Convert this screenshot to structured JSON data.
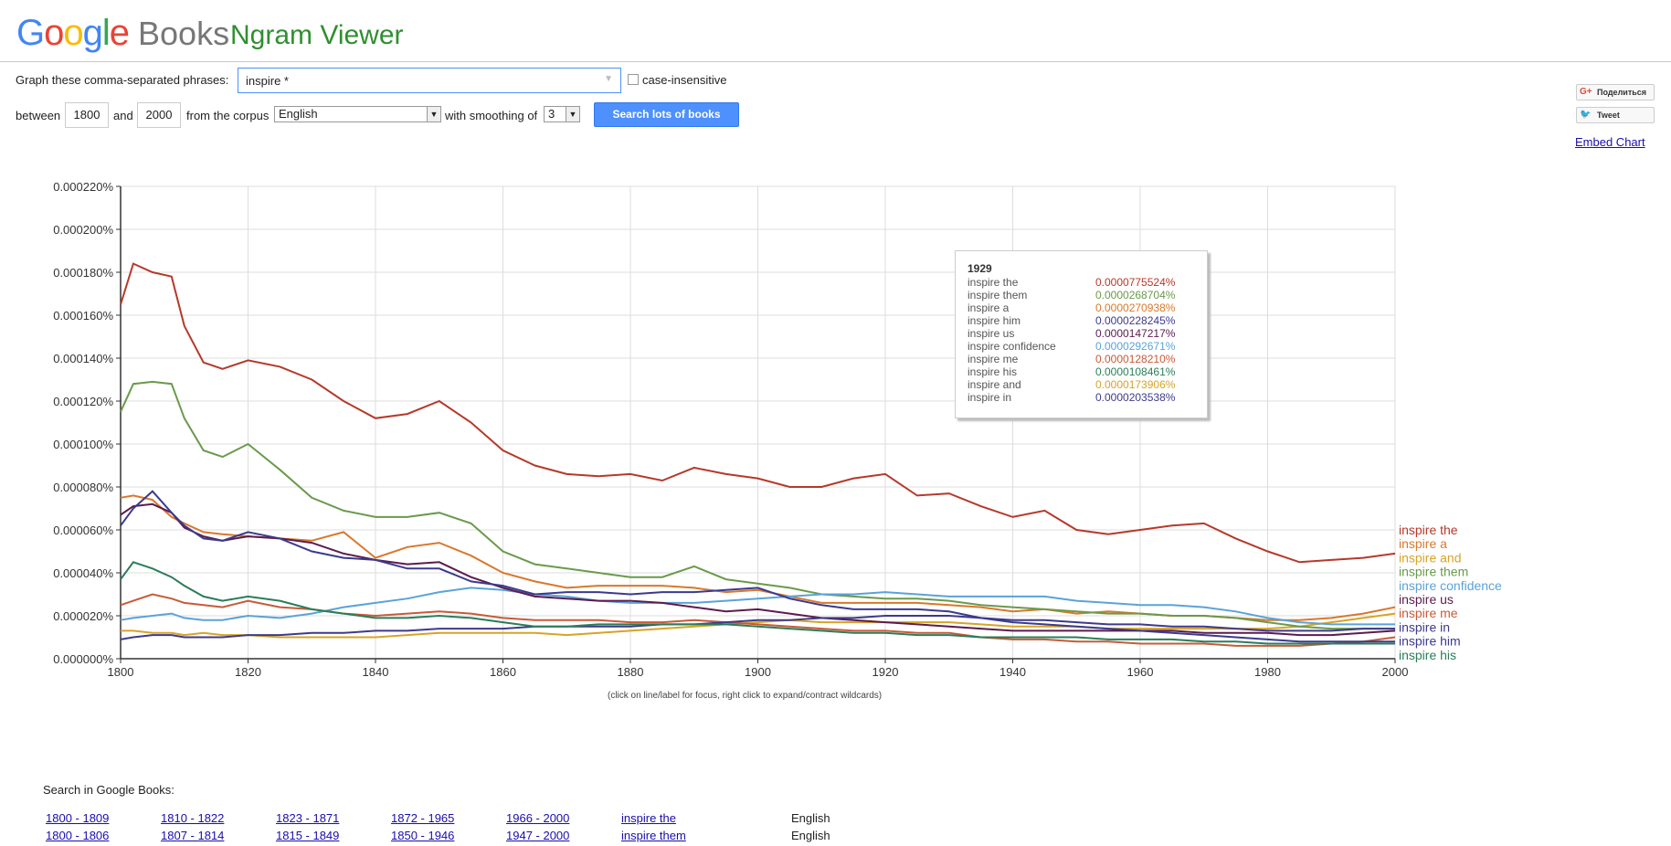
{
  "header": {
    "logo_parts": [
      "G",
      "o",
      "o",
      "g",
      "l",
      "e"
    ],
    "logo_books": "Books",
    "app_name": "Ngram Viewer"
  },
  "form": {
    "phrases_label": "Graph these comma-separated phrases:",
    "phrases_value": "inspire *",
    "case_label": "case-insensitive",
    "between_label": "between",
    "start_year": "1800",
    "and_label": "and",
    "end_year": "2000",
    "corpus_label": "from the corpus",
    "corpus_value": "English",
    "smoothing_label": "with smoothing of",
    "smoothing_value": "3",
    "search_button": "Search lots of books"
  },
  "share": {
    "gplus_label": "Поделиться",
    "tweet_label": "Tweet",
    "embed_label": "Embed Chart"
  },
  "hint": "(click on line/label for focus, right click to expand/contract wildcards)",
  "tooltip": {
    "year": "1929",
    "rows": [
      {
        "name": "inspire the",
        "value": "0.0000775524%",
        "color": "#b5392a"
      },
      {
        "name": "inspire them",
        "value": "0.0000268704%",
        "color": "#6a9a4b"
      },
      {
        "name": "inspire a",
        "value": "0.0000270938%",
        "color": "#d9782b"
      },
      {
        "name": "inspire him",
        "value": "0.0000228245%",
        "color": "#3b3a8e"
      },
      {
        "name": "inspire us",
        "value": "0.0000147217%",
        "color": "#5c1c4d"
      },
      {
        "name": "inspire confidence",
        "value": "0.0000292671%",
        "color": "#5aa3d9"
      },
      {
        "name": "inspire me",
        "value": "0.0000128210%",
        "color": "#c85a38"
      },
      {
        "name": "inspire his",
        "value": "0.0000108461%",
        "color": "#2a7d5a"
      },
      {
        "name": "inspire and",
        "value": "0.0000173906%",
        "color": "#d6a428"
      },
      {
        "name": "inspire in",
        "value": "0.0000203538%",
        "color": "#3e3a8a"
      }
    ]
  },
  "search_in": {
    "label": "Search in Google Books:",
    "rows": [
      {
        "ranges": [
          "1800 - 1809",
          "1810 - 1822",
          "1823 - 1871",
          "1872 - 1965",
          "1966 - 2000"
        ],
        "phrase": "inspire the",
        "corpus": "English"
      },
      {
        "ranges": [
          "1800 - 1806",
          "1807 - 1814",
          "1815 - 1849",
          "1850 - 1946",
          "1947 - 2000"
        ],
        "phrase": "inspire them",
        "corpus": "English"
      }
    ]
  },
  "chart_data": {
    "type": "line",
    "xlim": [
      1800,
      2000
    ],
    "ylim": [
      0,
      0.00022
    ],
    "x_ticks": [
      "1800",
      "1820",
      "1840",
      "1860",
      "1880",
      "1900",
      "1920",
      "1940",
      "1960",
      "1980",
      "2000"
    ],
    "y_ticks": [
      "0.000000%",
      "0.000020%",
      "0.000040%",
      "0.000060%",
      "0.000080%",
      "0.000100%",
      "0.000120%",
      "0.000140%",
      "0.000160%",
      "0.000180%",
      "0.000200%",
      "0.000220%"
    ],
    "grid": true,
    "x": [
      1800,
      1802,
      1805,
      1808,
      1810,
      1813,
      1816,
      1820,
      1825,
      1830,
      1835,
      1840,
      1845,
      1850,
      1855,
      1860,
      1865,
      1870,
      1875,
      1880,
      1885,
      1890,
      1895,
      1900,
      1905,
      1910,
      1915,
      1920,
      1925,
      1930,
      1935,
      1940,
      1945,
      1950,
      1955,
      1960,
      1965,
      1970,
      1975,
      1980,
      1985,
      1990,
      1995,
      2000
    ],
    "series": [
      {
        "name": "inspire the",
        "color": "#b5392a",
        "values": [
          0.000165,
          0.000184,
          0.00018,
          0.000178,
          0.000155,
          0.000138,
          0.000135,
          0.000139,
          0.000136,
          0.00013,
          0.00012,
          0.000112,
          0.000114,
          0.00012,
          0.00011,
          9.7e-05,
          9e-05,
          8.6e-05,
          8.5e-05,
          8.6e-05,
          8.3e-05,
          8.9e-05,
          8.6e-05,
          8.4e-05,
          8e-05,
          8e-05,
          8.4e-05,
          8.6e-05,
          7.6e-05,
          7.7e-05,
          7.1e-05,
          6.6e-05,
          6.9e-05,
          6e-05,
          5.8e-05,
          6e-05,
          6.2e-05,
          6.3e-05,
          5.6e-05,
          5e-05,
          4.5e-05,
          4.6e-05,
          4.7e-05,
          4.9e-05
        ]
      },
      {
        "name": "inspire a",
        "color": "#d9782b",
        "values": [
          7.5e-05,
          7.6e-05,
          7.4e-05,
          6.6e-05,
          6.3e-05,
          5.9e-05,
          5.8e-05,
          5.7e-05,
          5.6e-05,
          5.5e-05,
          5.9e-05,
          4.7e-05,
          5.2e-05,
          5.4e-05,
          4.8e-05,
          4e-05,
          3.6e-05,
          3.3e-05,
          3.4e-05,
          3.4e-05,
          3.4e-05,
          3.3e-05,
          3.1e-05,
          3.2e-05,
          2.9e-05,
          2.6e-05,
          2.6e-05,
          2.6e-05,
          2.6e-05,
          2.5e-05,
          2.4e-05,
          2.2e-05,
          2.3e-05,
          2.1e-05,
          2.2e-05,
          2.1e-05,
          2e-05,
          2e-05,
          1.9e-05,
          1.8e-05,
          1.8e-05,
          1.9e-05,
          2.1e-05,
          2.4e-05
        ]
      },
      {
        "name": "inspire and",
        "color": "#d6a428",
        "values": [
          1.3e-05,
          1.3e-05,
          1.2e-05,
          1.2e-05,
          1.1e-05,
          1.2e-05,
          1.1e-05,
          1.1e-05,
          1e-05,
          1e-05,
          1e-05,
          1e-05,
          1.1e-05,
          1.2e-05,
          1.2e-05,
          1.2e-05,
          1.2e-05,
          1.1e-05,
          1.2e-05,
          1.3e-05,
          1.4e-05,
          1.5e-05,
          1.6e-05,
          1.7e-05,
          1.8e-05,
          1.7e-05,
          1.7e-05,
          1.7e-05,
          1.7e-05,
          1.7e-05,
          1.6e-05,
          1.5e-05,
          1.5e-05,
          1.5e-05,
          1.4e-05,
          1.4e-05,
          1.4e-05,
          1.4e-05,
          1.4e-05,
          1.4e-05,
          1.5e-05,
          1.7e-05,
          1.9e-05,
          2.1e-05
        ]
      },
      {
        "name": "inspire them",
        "color": "#6a9a4b",
        "values": [
          0.000115,
          0.000128,
          0.000129,
          0.000128,
          0.000112,
          9.7e-05,
          9.4e-05,
          0.0001,
          8.8e-05,
          7.5e-05,
          6.9e-05,
          6.6e-05,
          6.6e-05,
          6.8e-05,
          6.3e-05,
          5e-05,
          4.4e-05,
          4.2e-05,
          4e-05,
          3.8e-05,
          3.8e-05,
          4.3e-05,
          3.7e-05,
          3.5e-05,
          3.3e-05,
          3e-05,
          2.9e-05,
          2.8e-05,
          2.8e-05,
          2.7e-05,
          2.5e-05,
          2.4e-05,
          2.3e-05,
          2.2e-05,
          2.1e-05,
          2.1e-05,
          2e-05,
          2e-05,
          1.9e-05,
          1.7e-05,
          1.5e-05,
          1.4e-05,
          1.4e-05,
          1.4e-05
        ]
      },
      {
        "name": "inspire confidence",
        "color": "#5aa3d9",
        "values": [
          1.8e-05,
          1.9e-05,
          2e-05,
          2.1e-05,
          1.9e-05,
          1.8e-05,
          1.8e-05,
          2e-05,
          1.9e-05,
          2.1e-05,
          2.4e-05,
          2.6e-05,
          2.8e-05,
          3.1e-05,
          3.3e-05,
          3.2e-05,
          3e-05,
          2.9e-05,
          2.7e-05,
          2.6e-05,
          2.6e-05,
          2.6e-05,
          2.7e-05,
          2.8e-05,
          2.9e-05,
          3e-05,
          3e-05,
          3.1e-05,
          3e-05,
          2.9e-05,
          2.9e-05,
          2.9e-05,
          2.9e-05,
          2.7e-05,
          2.6e-05,
          2.5e-05,
          2.5e-05,
          2.4e-05,
          2.2e-05,
          1.9e-05,
          1.7e-05,
          1.6e-05,
          1.6e-05,
          1.6e-05
        ]
      },
      {
        "name": "inspire us",
        "color": "#5c1c4d",
        "values": [
          6.7e-05,
          7.1e-05,
          7.2e-05,
          6.8e-05,
          6.1e-05,
          5.7e-05,
          5.5e-05,
          5.7e-05,
          5.6e-05,
          5.4e-05,
          4.9e-05,
          4.6e-05,
          4.4e-05,
          4.5e-05,
          3.8e-05,
          3.3e-05,
          2.9e-05,
          2.8e-05,
          2.7e-05,
          2.7e-05,
          2.6e-05,
          2.4e-05,
          2.2e-05,
          2.3e-05,
          2.1e-05,
          1.9e-05,
          1.8e-05,
          1.7e-05,
          1.6e-05,
          1.5e-05,
          1.4e-05,
          1.3e-05,
          1.3e-05,
          1.3e-05,
          1.3e-05,
          1.3e-05,
          1.3e-05,
          1.2e-05,
          1.2e-05,
          1.2e-05,
          1.1e-05,
          1.1e-05,
          1.2e-05,
          1.3e-05
        ]
      },
      {
        "name": "inspire me",
        "color": "#c85a38",
        "values": [
          2.5e-05,
          2.7e-05,
          3e-05,
          2.8e-05,
          2.6e-05,
          2.5e-05,
          2.4e-05,
          2.7e-05,
          2.4e-05,
          2.3e-05,
          2.1e-05,
          2e-05,
          2.1e-05,
          2.2e-05,
          2.1e-05,
          1.9e-05,
          1.8e-05,
          1.8e-05,
          1.8e-05,
          1.7e-05,
          1.7e-05,
          1.8e-05,
          1.7e-05,
          1.6e-05,
          1.5e-05,
          1.4e-05,
          1.3e-05,
          1.3e-05,
          1.2e-05,
          1.2e-05,
          1e-05,
          9e-06,
          9e-06,
          8e-06,
          8e-06,
          7e-06,
          7e-06,
          7e-06,
          6e-06,
          6e-06,
          6e-06,
          7e-06,
          8e-06,
          1e-05
        ]
      },
      {
        "name": "inspire in",
        "color": "#3e3a8a",
        "values": [
          9e-06,
          1e-05,
          1.1e-05,
          1.1e-05,
          1e-05,
          1e-05,
          1e-05,
          1.1e-05,
          1.1e-05,
          1.2e-05,
          1.2e-05,
          1.3e-05,
          1.3e-05,
          1.4e-05,
          1.4e-05,
          1.4e-05,
          1.5e-05,
          1.5e-05,
          1.5e-05,
          1.5e-05,
          1.6e-05,
          1.6e-05,
          1.7e-05,
          1.8e-05,
          1.8e-05,
          1.9e-05,
          1.9e-05,
          2e-05,
          2e-05,
          2e-05,
          1.9e-05,
          1.8e-05,
          1.8e-05,
          1.7e-05,
          1.6e-05,
          1.6e-05,
          1.5e-05,
          1.5e-05,
          1.4e-05,
          1.3e-05,
          1.3e-05,
          1.3e-05,
          1.4e-05,
          1.4e-05
        ]
      },
      {
        "name": "inspire him",
        "color": "#3b3a8e",
        "values": [
          6.2e-05,
          7e-05,
          7.8e-05,
          6.8e-05,
          6.2e-05,
          5.6e-05,
          5.5e-05,
          5.9e-05,
          5.6e-05,
          5e-05,
          4.7e-05,
          4.6e-05,
          4.2e-05,
          4.2e-05,
          3.6e-05,
          3.4e-05,
          3e-05,
          3.1e-05,
          3.1e-05,
          3e-05,
          3.1e-05,
          3.1e-05,
          3.2e-05,
          3.3e-05,
          2.8e-05,
          2.5e-05,
          2.3e-05,
          2.3e-05,
          2.3e-05,
          2.2e-05,
          1.9e-05,
          1.7e-05,
          1.6e-05,
          1.5e-05,
          1.4e-05,
          1.3e-05,
          1.2e-05,
          1.1e-05,
          1e-05,
          9e-06,
          8e-06,
          8e-06,
          8e-06,
          8e-06
        ]
      },
      {
        "name": "inspire his",
        "color": "#2a7d5a",
        "values": [
          3.7e-05,
          4.5e-05,
          4.2e-05,
          3.8e-05,
          3.4e-05,
          2.9e-05,
          2.7e-05,
          2.9e-05,
          2.7e-05,
          2.3e-05,
          2.1e-05,
          1.9e-05,
          1.9e-05,
          2e-05,
          1.9e-05,
          1.7e-05,
          1.5e-05,
          1.5e-05,
          1.6e-05,
          1.6e-05,
          1.6e-05,
          1.6e-05,
          1.6e-05,
          1.5e-05,
          1.4e-05,
          1.3e-05,
          1.2e-05,
          1.2e-05,
          1.1e-05,
          1.1e-05,
          1e-05,
          1e-05,
          1e-05,
          1e-05,
          9e-06,
          9e-06,
          9e-06,
          8e-06,
          8e-06,
          7e-06,
          7e-06,
          7e-06,
          7e-06,
          7e-06
        ]
      }
    ]
  }
}
